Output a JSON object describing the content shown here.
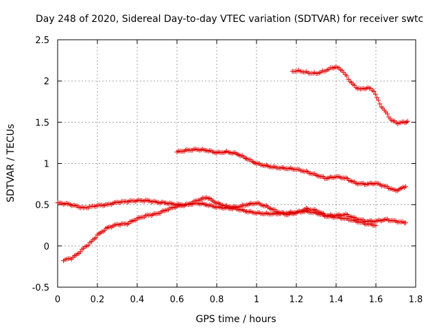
{
  "chart_data": {
    "type": "scatter",
    "title": "Day 248 of 2020, Sidereal Day-to-day VTEC variation (SDTVAR) for receiver swtc",
    "xlabel": "GPS time / hours",
    "ylabel": "SDTVAR / TECUs",
    "xlim": [
      0,
      1.8
    ],
    "ylim": [
      -0.5,
      2.5
    ],
    "xticks": [
      0,
      0.2,
      0.4,
      0.6,
      0.8,
      1,
      1.2,
      1.4,
      1.6,
      1.8
    ],
    "xtick_labels": [
      "0",
      "0.2",
      "0.4",
      "0.6",
      "0.8",
      "1",
      "1.2",
      "1.4",
      "1.6",
      "1.8"
    ],
    "yticks": [
      -0.5,
      0,
      0.5,
      1,
      1.5,
      2,
      2.5
    ],
    "ytick_labels": [
      "-0.5",
      "0",
      "0.5",
      "1",
      "1.5",
      "2",
      "2.5"
    ],
    "grid": true,
    "marker": "+",
    "color": "#e00000",
    "series": [
      {
        "name": "series-1",
        "x": [
          0.0,
          0.05,
          0.1,
          0.13,
          0.2,
          0.25,
          0.3,
          0.35,
          0.4,
          0.45,
          0.5,
          0.55,
          0.6,
          0.65,
          0.7,
          0.75,
          0.8,
          0.85,
          0.9,
          0.95,
          1.0,
          1.05,
          1.1,
          1.15,
          1.2,
          1.25,
          1.3,
          1.35,
          1.4,
          1.45,
          1.5,
          1.55,
          1.6
        ],
        "y": [
          0.52,
          0.51,
          0.48,
          0.46,
          0.49,
          0.5,
          0.53,
          0.54,
          0.55,
          0.55,
          0.53,
          0.52,
          0.5,
          0.5,
          0.52,
          0.5,
          0.47,
          0.46,
          0.45,
          0.42,
          0.4,
          0.39,
          0.39,
          0.4,
          0.41,
          0.42,
          0.4,
          0.36,
          0.35,
          0.33,
          0.3,
          0.27,
          0.25
        ]
      },
      {
        "name": "series-2",
        "x": [
          0.03,
          0.07,
          0.1,
          0.13,
          0.17,
          0.2,
          0.25,
          0.3,
          0.35,
          0.4,
          0.45,
          0.5,
          0.55,
          0.6,
          0.65,
          0.7,
          0.75,
          0.8,
          0.85,
          0.9,
          0.95,
          1.0,
          1.05,
          1.1,
          1.15,
          1.2,
          1.25,
          1.3,
          1.35,
          1.4,
          1.45,
          1.5,
          1.55,
          1.6,
          1.65,
          1.7,
          1.75
        ],
        "y": [
          -0.17,
          -0.15,
          -0.1,
          -0.03,
          0.05,
          0.13,
          0.22,
          0.26,
          0.27,
          0.33,
          0.37,
          0.39,
          0.44,
          0.48,
          0.5,
          0.55,
          0.59,
          0.52,
          0.48,
          0.47,
          0.5,
          0.52,
          0.48,
          0.42,
          0.38,
          0.4,
          0.45,
          0.43,
          0.37,
          0.37,
          0.38,
          0.33,
          0.3,
          0.3,
          0.32,
          0.3,
          0.28
        ]
      },
      {
        "name": "series-3",
        "x": [
          0.6,
          0.65,
          0.7,
          0.75,
          0.8,
          0.85,
          0.9,
          0.95,
          1.0,
          1.05,
          1.1,
          1.15,
          1.2,
          1.25,
          1.3,
          1.35,
          1.4,
          1.45,
          1.5,
          1.55,
          1.6,
          1.65,
          1.7,
          1.75
        ],
        "y": [
          1.14,
          1.16,
          1.17,
          1.16,
          1.13,
          1.14,
          1.12,
          1.06,
          1.0,
          0.97,
          0.95,
          0.94,
          0.93,
          0.9,
          0.86,
          0.82,
          0.84,
          0.82,
          0.76,
          0.75,
          0.76,
          0.72,
          0.67,
          0.72
        ]
      },
      {
        "name": "series-4",
        "x": [
          1.18,
          1.22,
          1.26,
          1.3,
          1.34,
          1.38,
          1.4,
          1.43,
          1.47,
          1.5,
          1.53,
          1.56,
          1.59,
          1.62,
          1.65,
          1.68,
          1.71,
          1.74,
          1.76
        ],
        "y": [
          2.12,
          2.12,
          2.1,
          2.09,
          2.12,
          2.16,
          2.17,
          2.13,
          2.0,
          1.92,
          1.9,
          1.92,
          1.88,
          1.72,
          1.62,
          1.52,
          1.49,
          1.5,
          1.51
        ]
      }
    ]
  }
}
